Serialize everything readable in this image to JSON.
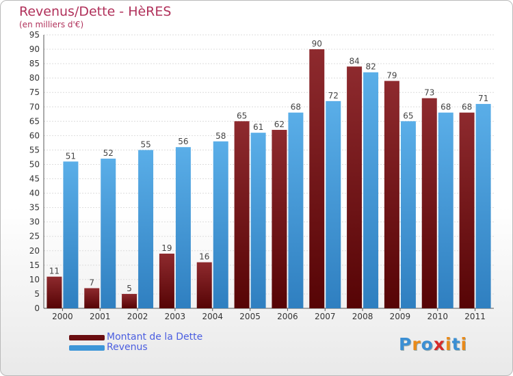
{
  "title": "Revenus/Dette - HèRES",
  "subtitle": "(en milliers d'€)",
  "logo": "Proxiti",
  "colors": {
    "dette": "#7a1418",
    "revenus": "#3d96d8",
    "title": "#b0305a",
    "legend_text": "#4a5de0"
  },
  "chart_data": {
    "type": "bar",
    "title": "Revenus/Dette - HèRES",
    "subtitle": "(en milliers d'€)",
    "categories": [
      "2000",
      "2001",
      "2002",
      "2003",
      "2004",
      "2005",
      "2006",
      "2007",
      "2008",
      "2009",
      "2010",
      "2011"
    ],
    "series": [
      {
        "name": "Montant de la Dette",
        "color": "#7a1418",
        "values": [
          11,
          7,
          5,
          19,
          16,
          65,
          62,
          90,
          84,
          79,
          73,
          68
        ]
      },
      {
        "name": "Revenus",
        "color": "#3d96d8",
        "values": [
          51,
          52,
          55,
          56,
          58,
          61,
          68,
          72,
          82,
          65,
          68,
          71
        ]
      }
    ],
    "ylim": [
      0,
      95
    ],
    "yticks": [
      0,
      5,
      10,
      15,
      20,
      25,
      30,
      35,
      40,
      45,
      50,
      55,
      60,
      65,
      70,
      75,
      80,
      85,
      90,
      95
    ],
    "grid": true,
    "legend": "bottom-left"
  }
}
